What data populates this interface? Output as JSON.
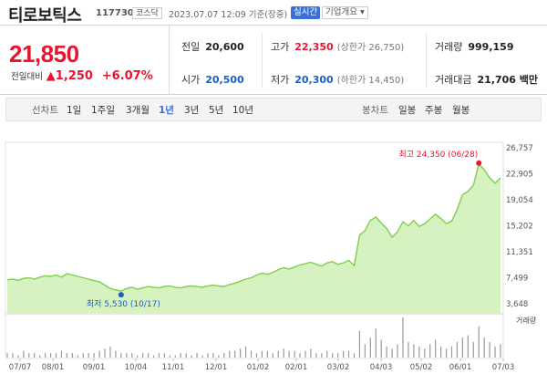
{
  "header": {
    "name": "티로보틱스",
    "code": "117730",
    "market": "코스닥",
    "timestamp": "2023.07.07 12:09  기준(장중)",
    "live_label": "실시간",
    "info_label": "기업개요 ▾"
  },
  "summary": {
    "price": "21,850",
    "change_label": "전일대비",
    "change": "▲1,250",
    "change_pct": "+6.07%",
    "prev_close": {
      "label": "전일",
      "value": "20,600"
    },
    "high": {
      "label": "고가",
      "value": "22,350",
      "sub": "(상한가 26,750)"
    },
    "volume": {
      "label": "거래량",
      "value": "999,159"
    },
    "open": {
      "label": "시가",
      "value": "20,500"
    },
    "low": {
      "label": "저가",
      "value": "20,300",
      "sub": "(하한가 14,450)"
    },
    "amount": {
      "label": "거래대금",
      "value": "21,706 백만"
    }
  },
  "tabs": {
    "line_label": "선차트",
    "periods": [
      "1일",
      "1주일",
      "3개월",
      "1년",
      "3년",
      "5년",
      "10년"
    ],
    "selected": "1년",
    "candle_label": "봉차트",
    "candles": [
      "일봉",
      "주봉",
      "월봉"
    ]
  },
  "chart_data": {
    "type": "area",
    "y_ticks": [
      "26,757",
      "22,905",
      "19,054",
      "15,202",
      "11,351",
      "7,499",
      "3,648"
    ],
    "ylim": [
      3648,
      26757
    ],
    "x_ticks": [
      "07/07",
      "08/01",
      "09/01",
      "10/04",
      "11/01",
      "12/01",
      "01/02",
      "02/01",
      "03/02",
      "04/03",
      "05/02",
      "06/01",
      "07/03"
    ],
    "max_label": "최고 24,350 (06/28)",
    "min_label": "최저 5,530 (10/17)",
    "volume_label": "거래량",
    "colors": {
      "line": "#7cd04a",
      "fill": "#d6f2c0",
      "max": "#e8152f",
      "min": "#1a5fc8"
    },
    "series": [
      {
        "values": [
          7200,
          7300,
          7100,
          7400,
          7500,
          7300,
          7600,
          7800,
          7700,
          7900,
          7600,
          8100,
          7900,
          7700,
          7500,
          7300,
          7100,
          6900,
          6400,
          5900,
          5700,
          5530,
          5900,
          6100,
          5800,
          6000,
          6200,
          6100,
          6000,
          6200,
          6300,
          6100,
          6000,
          6200,
          6300,
          6200,
          6100,
          6300,
          6400,
          6300,
          6200,
          6500,
          6700,
          7000,
          7300,
          7500,
          7900,
          8200,
          8000,
          8300,
          8700,
          9000,
          8800,
          9100,
          9400,
          9600,
          9800,
          9500,
          9200,
          9700,
          9900,
          9500,
          9700,
          10100,
          9300,
          13800,
          14500,
          16000,
          16500,
          15600,
          14800,
          13500,
          14300,
          15800,
          15200,
          16000,
          15100,
          15500,
          16200,
          16900,
          16300,
          15500,
          15900,
          17600,
          19800,
          20300,
          21200,
          24350,
          23500,
          22300,
          21500,
          22300
        ]
      }
    ],
    "volume": [
      2,
      2,
      1,
      3,
      2,
      2,
      1,
      2,
      2,
      2,
      3,
      2,
      2,
      1,
      2,
      2,
      2,
      3,
      4,
      5,
      3,
      2,
      2,
      2,
      1,
      2,
      2,
      1,
      2,
      2,
      1,
      1,
      2,
      2,
      1,
      2,
      1,
      2,
      2,
      1,
      2,
      3,
      3,
      4,
      5,
      3,
      2,
      3,
      3,
      2,
      3,
      4,
      3,
      3,
      2,
      3,
      4,
      2,
      2,
      3,
      2,
      2,
      3,
      3,
      2,
      12,
      6,
      9,
      13,
      8,
      5,
      4,
      6,
      18,
      7,
      6,
      5,
      4,
      6,
      8,
      5,
      4,
      5,
      7,
      9,
      10,
      7,
      14,
      9,
      7,
      5,
      6
    ]
  }
}
